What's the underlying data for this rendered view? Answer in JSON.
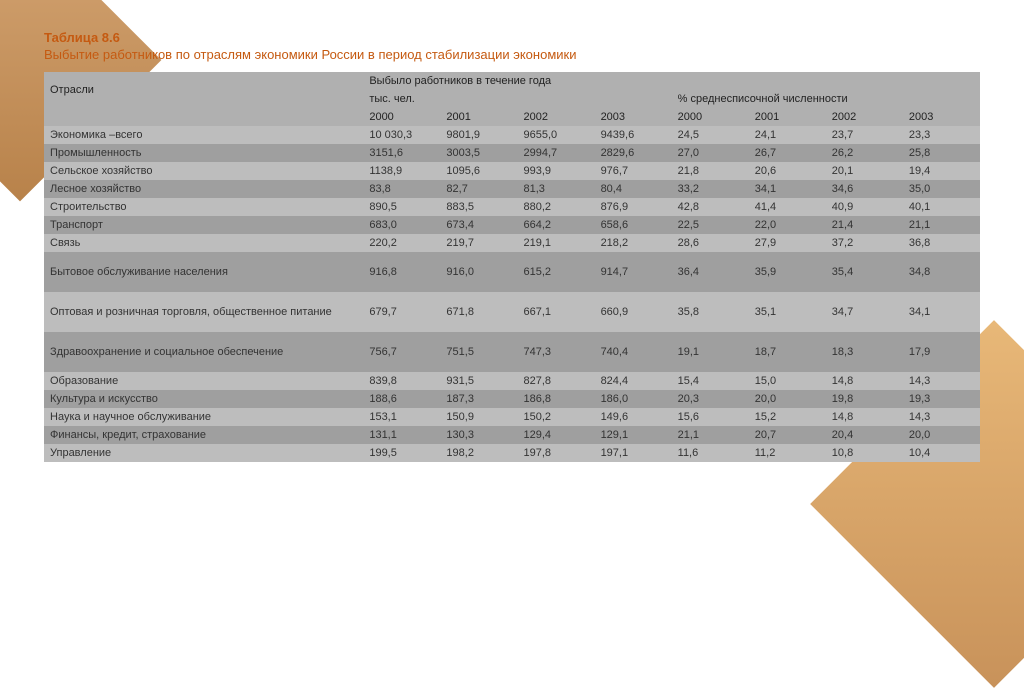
{
  "title_block": {
    "number": "Таблица 8.6",
    "caption": "Выбытие работников по отраслям экономики России в период стабилизации экономики"
  },
  "table": {
    "header_top": "Выбыло работников в течение года",
    "group1_label": "тыс. чел.",
    "group2_label": "% среднесписочной численности",
    "sector_label": "Отрасли",
    "years": [
      "2000",
      "2001",
      "2002",
      "2003",
      "2000",
      "2001",
      "2002",
      "2003"
    ],
    "rows": [
      {
        "sector": "Экономика –всего",
        "v": [
          "10 030,3",
          "9801,9",
          "9655,0",
          "9439,6",
          "24,5",
          "24,1",
          "23,7",
          "23,3"
        ]
      },
      {
        "sector": "Промышленность",
        "v": [
          "3151,6",
          "3003,5",
          "2994,7",
          "2829,6",
          "27,0",
          "26,7",
          "26,2",
          "25,8"
        ]
      },
      {
        "sector": "Сельское хозяйство",
        "v": [
          "1138,9",
          "1095,6",
          "993,9",
          "976,7",
          "21,8",
          "20,6",
          "20,1",
          "19,4"
        ]
      },
      {
        "sector": "Лесное хозяйство",
        "v": [
          "83,8",
          "82,7",
          "81,3",
          "80,4",
          "33,2",
          "34,1",
          "34,6",
          "35,0"
        ]
      },
      {
        "sector": "Строительство",
        "v": [
          "890,5",
          "883,5",
          "880,2",
          "876,9",
          "42,8",
          "41,4",
          "40,9",
          "40,1"
        ]
      },
      {
        "sector": "Транспорт",
        "v": [
          "683,0",
          "673,4",
          "664,2",
          "658,6",
          "22,5",
          "22,0",
          "21,4",
          "21,1"
        ]
      },
      {
        "sector": "Связь",
        "v": [
          "220,2",
          "219,7",
          "219,1",
          "218,2",
          "28,6",
          "27,9",
          "37,2",
          "36,8"
        ]
      },
      {
        "sector": "Бытовое обслуживание населения",
        "v": [
          "916,8",
          "916,0",
          "615,2",
          "914,7",
          "36,4",
          "35,9",
          "35,4",
          "34,8"
        ],
        "tall": true
      },
      {
        "sector": "Оптовая и розничная торговля, общественное питание",
        "v": [
          "679,7",
          "671,8",
          "667,1",
          "660,9",
          "35,8",
          "35,1",
          "34,7",
          "34,1"
        ],
        "tall": true
      },
      {
        "sector": "Здравоохранение и социальное обеспечение",
        "v": [
          "756,7",
          "751,5",
          "747,3",
          "740,4",
          "19,1",
          "18,7",
          "18,3",
          "17,9"
        ],
        "tall": true
      },
      {
        "sector": "Образование",
        "v": [
          "839,8",
          "931,5",
          "827,8",
          "824,4",
          "15,4",
          "15,0",
          "14,8",
          "14,3"
        ]
      },
      {
        "sector": "Культура и искусство",
        "v": [
          "188,6",
          "187,3",
          "186,8",
          "186,0",
          "20,3",
          "20,0",
          "19,8",
          "19,3"
        ]
      },
      {
        "sector": "Наука и научное обслуживание",
        "v": [
          "153,1",
          "150,9",
          "150,2",
          "149,6",
          "15,6",
          "15,2",
          "14,8",
          "14,3"
        ]
      },
      {
        "sector": "Финансы, кредит, страхование",
        "v": [
          "131,1",
          "130,3",
          "129,4",
          "129,1",
          "21,1",
          "20,7",
          "20,4",
          "20,0"
        ]
      },
      {
        "sector": "Управление",
        "v": [
          "199,5",
          "198,2",
          "197,8",
          "197,1",
          "11,6",
          "11,2",
          "10,8",
          "10,4"
        ]
      }
    ]
  },
  "colors": {
    "accent": "#c55a11",
    "row_light": "#bdbdbd",
    "row_dark": "#9f9f9f",
    "header_bg": "#b0b0b0"
  }
}
